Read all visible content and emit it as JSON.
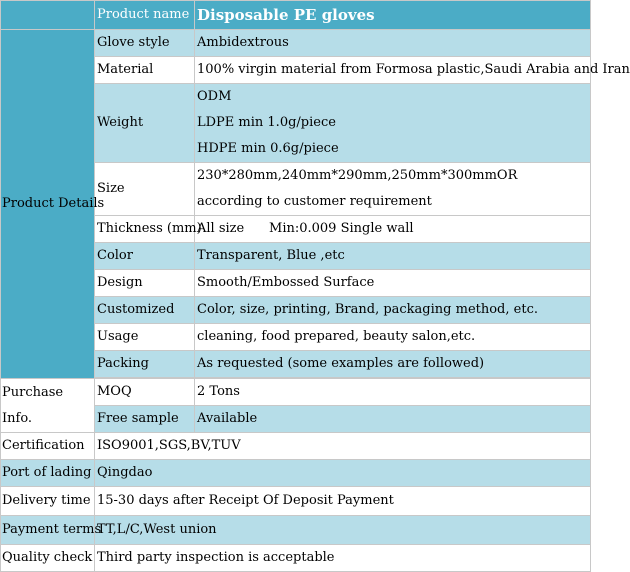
{
  "header": {
    "label": "Product name",
    "value": "Disposable PE gloves"
  },
  "product_details": {
    "section_label": "Product Details",
    "rows": {
      "glove_style": {
        "label": "Glove style",
        "value": "Ambidextrous"
      },
      "material": {
        "label": "Material",
        "value": "100% virgin material from Formosa plastic,Saudi Arabia and Iran"
      },
      "weight": {
        "label": "Weight",
        "lines": [
          "ODM",
          "LDPE min 1.0g/piece",
          "HDPE min 0.6g/piece"
        ]
      },
      "size": {
        "label": "Size",
        "lines": [
          "230*280mm,240mm*290mm,250mm*300mmOR",
          "according to customer requirement"
        ]
      },
      "thickness": {
        "label": "Thickness (mm)",
        "value": "All size      Min:0.009 Single wall"
      },
      "color": {
        "label": "Color",
        "value": "Transparent, Blue ,etc"
      },
      "design": {
        "label": "Design",
        "value": "Smooth/Embossed Surface"
      },
      "customized": {
        "label": "Customized",
        "value": "Color, size, printing, Brand, packaging method, etc."
      },
      "usage": {
        "label": "Usage",
        "value": "cleaning, food prepared, beauty salon,etc."
      },
      "packing": {
        "label": "Packing",
        "value": "As requested (some examples are followed)"
      }
    }
  },
  "purchase_info": {
    "section_label_line1": "Purchase",
    "section_label_line2": "Info.",
    "rows": {
      "moq": {
        "label": "MOQ",
        "value": "2 Tons"
      },
      "free_sample": {
        "label": "Free sample",
        "value": "Available"
      }
    }
  },
  "certification": {
    "label": "Certification",
    "value": "ISO9001,SGS,BV,TUV"
  },
  "port_of_lading": {
    "label": "Port of lading",
    "value": "Qingdao"
  },
  "delivery_time": {
    "label": "Delivery time",
    "value": "15-30 days after Receipt Of Deposit Payment"
  },
  "payment_terms": {
    "label": "Payment terms",
    "value": "TT,L/C,West union"
  },
  "quality_check": {
    "label": "Quality check",
    "value": "Third party inspection is acceptable"
  },
  "colors": {
    "header_blue": "#4bacc6",
    "row_light_blue": "#b6dde8",
    "row_white": "#ffffff",
    "grid": "#c8c8c8"
  }
}
